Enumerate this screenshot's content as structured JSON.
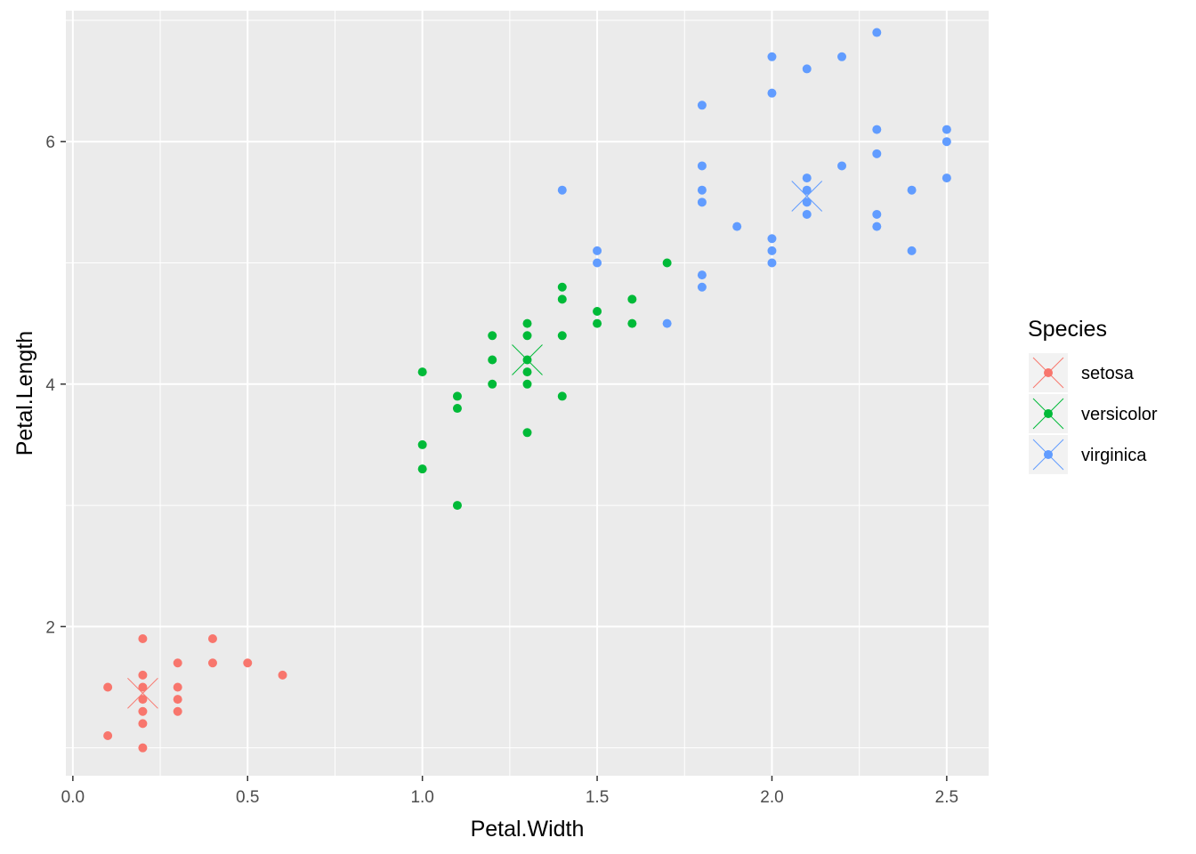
{
  "chart_data": {
    "type": "scatter",
    "xlabel": "Petal.Width",
    "ylabel": "Petal.Length",
    "xlim": [
      -0.02,
      2.62
    ],
    "ylim": [
      0.77,
      7.08
    ],
    "x_ticks": [
      0.0,
      0.5,
      1.0,
      1.5,
      2.0,
      2.5
    ],
    "x_tick_labels": [
      "0.0",
      "0.5",
      "1.0",
      "1.5",
      "2.0",
      "2.5"
    ],
    "x_minor_ticks": [
      0.25,
      0.75,
      1.25,
      1.75,
      2.25
    ],
    "y_ticks": [
      2,
      4,
      6
    ],
    "y_tick_labels": [
      "2",
      "4",
      "6"
    ],
    "y_minor_ticks": [
      1,
      3,
      5,
      7
    ],
    "grid": true,
    "legend": {
      "title": "Species",
      "position": "right",
      "entries": [
        "setosa",
        "versicolor",
        "virginica"
      ]
    },
    "series": [
      {
        "name": "setosa",
        "color": "#F8766D",
        "centroid": [
          0.2,
          1.45
        ],
        "points": [
          [
            0.2,
            1.9
          ],
          [
            0.4,
            1.9
          ],
          [
            0.3,
            1.7
          ],
          [
            0.4,
            1.7
          ],
          [
            0.5,
            1.7
          ],
          [
            0.2,
            1.6
          ],
          [
            0.6,
            1.6
          ],
          [
            0.1,
            1.5
          ],
          [
            0.2,
            1.5
          ],
          [
            0.3,
            1.5
          ],
          [
            0.2,
            1.4
          ],
          [
            0.3,
            1.4
          ],
          [
            0.2,
            1.3
          ],
          [
            0.3,
            1.3
          ],
          [
            0.2,
            1.2
          ],
          [
            0.1,
            1.1
          ],
          [
            0.2,
            1.0
          ]
        ]
      },
      {
        "name": "versicolor",
        "color": "#00BA38",
        "centroid": [
          1.3,
          4.2
        ],
        "points": [
          [
            1.7,
            5.0
          ],
          [
            1.4,
            4.8
          ],
          [
            1.4,
            4.7
          ],
          [
            1.6,
            4.7
          ],
          [
            1.5,
            4.6
          ],
          [
            1.3,
            4.5
          ],
          [
            1.5,
            4.5
          ],
          [
            1.6,
            4.5
          ],
          [
            1.2,
            4.4
          ],
          [
            1.3,
            4.4
          ],
          [
            1.4,
            4.4
          ],
          [
            1.2,
            4.2
          ],
          [
            1.3,
            4.2
          ],
          [
            1.0,
            4.1
          ],
          [
            1.3,
            4.1
          ],
          [
            1.2,
            4.0
          ],
          [
            1.3,
            4.0
          ],
          [
            1.1,
            3.9
          ],
          [
            1.4,
            3.9
          ],
          [
            1.1,
            3.8
          ],
          [
            1.3,
            3.6
          ],
          [
            1.0,
            3.5
          ],
          [
            1.0,
            3.3
          ],
          [
            1.1,
            3.0
          ]
        ]
      },
      {
        "name": "virginica",
        "color": "#619CFF",
        "centroid": [
          2.1,
          5.55
        ],
        "points": [
          [
            2.3,
            6.9
          ],
          [
            2.0,
            6.7
          ],
          [
            2.2,
            6.7
          ],
          [
            2.1,
            6.6
          ],
          [
            2.0,
            6.4
          ],
          [
            1.8,
            6.3
          ],
          [
            2.3,
            6.1
          ],
          [
            2.5,
            6.1
          ],
          [
            2.5,
            6.0
          ],
          [
            2.3,
            5.9
          ],
          [
            1.8,
            5.8
          ],
          [
            2.2,
            5.8
          ],
          [
            2.1,
            5.7
          ],
          [
            2.5,
            5.7
          ],
          [
            1.4,
            5.6
          ],
          [
            1.8,
            5.6
          ],
          [
            2.1,
            5.6
          ],
          [
            2.4,
            5.6
          ],
          [
            1.8,
            5.5
          ],
          [
            2.1,
            5.5
          ],
          [
            2.1,
            5.4
          ],
          [
            2.3,
            5.4
          ],
          [
            1.9,
            5.3
          ],
          [
            2.3,
            5.3
          ],
          [
            2.0,
            5.2
          ],
          [
            1.5,
            5.1
          ],
          [
            2.0,
            5.1
          ],
          [
            2.4,
            5.1
          ],
          [
            1.5,
            5.0
          ],
          [
            2.0,
            5.0
          ],
          [
            1.8,
            4.9
          ],
          [
            1.8,
            4.8
          ],
          [
            1.7,
            4.5
          ]
        ]
      }
    ]
  }
}
